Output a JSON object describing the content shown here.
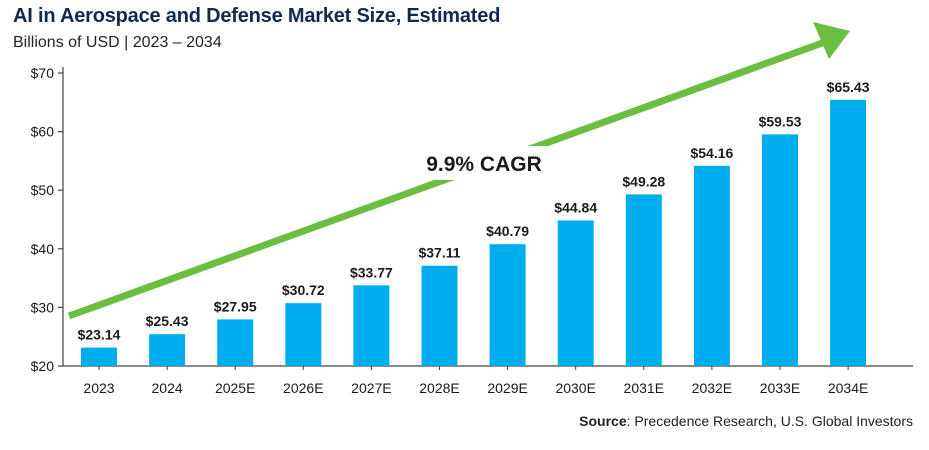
{
  "header": {
    "title": "AI in Aerospace and Defense Market Size, Estimated",
    "subtitle": "Billions of USD | 2023 – 2034"
  },
  "footer": {
    "source_label": "Source",
    "source_text": ": Precedence Research, U.S. Global Investors"
  },
  "colors": {
    "bar": "#00aeef",
    "arrow": "#6abf43",
    "title": "#12294c"
  },
  "chart_data": {
    "type": "bar",
    "title": "AI in Aerospace and Defense Market Size, Estimated",
    "subtitle": "Billions of USD | 2023 – 2034",
    "categories": [
      "2023",
      "2024",
      "2025E",
      "2026E",
      "2027E",
      "2028E",
      "2029E",
      "2030E",
      "2031E",
      "2032E",
      "2033E",
      "2034E"
    ],
    "values": [
      23.14,
      25.43,
      27.95,
      30.72,
      33.77,
      37.11,
      40.79,
      44.84,
      49.28,
      54.16,
      59.53,
      65.43
    ],
    "data_labels": [
      "$23.14",
      "$25.43",
      "$27.95",
      "$30.72",
      "$33.77",
      "$37.11",
      "$40.79",
      "$44.84",
      "$49.28",
      "$54.16",
      "$59.53",
      "$65.43"
    ],
    "yticks": [
      20,
      30,
      40,
      50,
      60,
      70
    ],
    "ytick_labels": [
      "$20",
      "$30",
      "$40",
      "$50",
      "$60",
      "$70"
    ],
    "ylim": [
      20,
      70
    ],
    "annotation": "9.9% CAGR",
    "grid": false,
    "legend": "none"
  }
}
